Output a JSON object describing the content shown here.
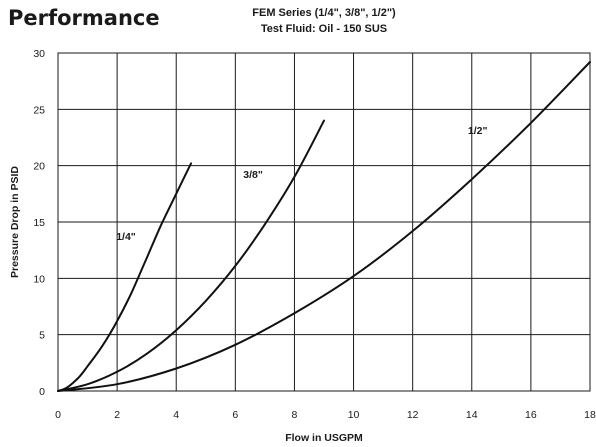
{
  "heading": "Performance",
  "chart_data": {
    "type": "line",
    "title": "FEM Series (1/4\", 3/8\", 1/2\")",
    "subtitle": "Test Fluid: Oil - 150 SUS",
    "xlabel": "Flow in USGPM",
    "ylabel": "Pressure Drop in PSID",
    "xlim": [
      0,
      18
    ],
    "ylim": [
      0,
      30
    ],
    "xticks": [
      "0",
      "2",
      "4",
      "6",
      "8",
      "10",
      "12",
      "14",
      "16",
      "18"
    ],
    "yticks": [
      "0",
      "5",
      "10",
      "15",
      "20",
      "25",
      "30"
    ],
    "grid": true,
    "series": [
      {
        "name": "1/4\"",
        "x": [
          0,
          0.3,
          0.7,
          1.0,
          1.5,
          2.0,
          2.5,
          3.0,
          3.5,
          4.0,
          4.5
        ],
        "y": [
          0,
          0.3,
          1.2,
          2.2,
          4.0,
          6.2,
          8.8,
          11.8,
          14.8,
          17.5,
          20.2
        ]
      },
      {
        "name": "3/8\"",
        "x": [
          0,
          1.0,
          2.0,
          3.0,
          4.0,
          5.0,
          6.0,
          7.0,
          8.0,
          9.0
        ],
        "y": [
          0,
          0.6,
          1.7,
          3.3,
          5.4,
          8.0,
          11.1,
          14.8,
          19.0,
          24.0
        ]
      },
      {
        "name": "1/2\"",
        "x": [
          0,
          2.0,
          4.0,
          6.0,
          8.0,
          10.0,
          12.0,
          14.0,
          16.0,
          18.0
        ],
        "y": [
          0,
          0.6,
          2.0,
          4.1,
          6.9,
          10.2,
          14.2,
          18.8,
          23.8,
          29.2
        ]
      }
    ],
    "series_labels": [
      {
        "text": "1/4\"",
        "x": 2.3,
        "y": 13.4
      },
      {
        "text": "3/8\"",
        "x": 6.6,
        "y": 18.9
      },
      {
        "text": "1/2\"",
        "x": 14.2,
        "y": 22.8
      }
    ]
  }
}
